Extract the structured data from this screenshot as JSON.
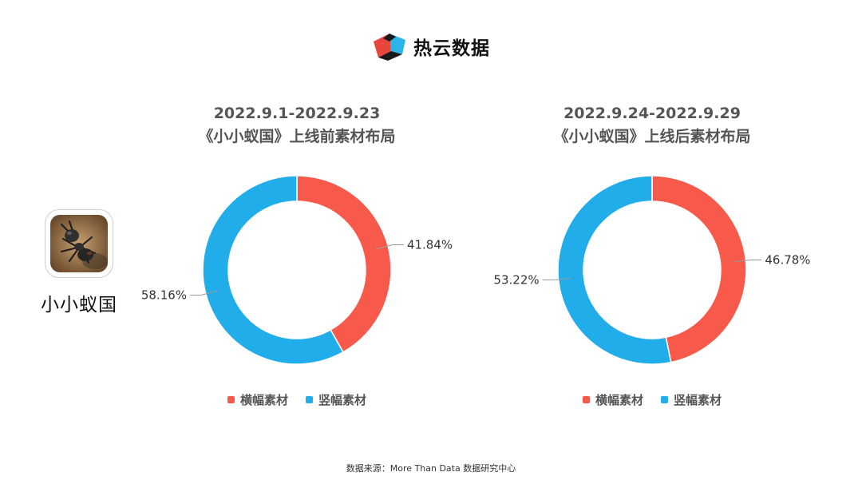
{
  "brand": {
    "name": "热云数据",
    "logo_icon": "reyun-logo-icon"
  },
  "game": {
    "name": "小小蚁国",
    "icon": "ant-game-icon"
  },
  "colors": {
    "horizontal": "#f75a4a",
    "vertical": "#21adea"
  },
  "chart_data": [
    {
      "type": "pie",
      "title": [
        "2022.9.1-2022.9.23",
        "《小小蚁国》上线前素材布局"
      ],
      "categories": [
        "横幅素材",
        "竖幅素材"
      ],
      "values": [
        41.84,
        58.16
      ],
      "labels": [
        "41.84%",
        "58.16%"
      ],
      "colors": [
        "#f75a4a",
        "#21adea"
      ],
      "legend": "bottom"
    },
    {
      "type": "pie",
      "title": [
        "2022.9.24-2022.9.29",
        "《小小蚁国》上线后素材布局"
      ],
      "categories": [
        "横幅素材",
        "竖幅素材"
      ],
      "values": [
        46.78,
        53.22
      ],
      "labels": [
        "46.78%",
        "53.22%"
      ],
      "colors": [
        "#f75a4a",
        "#21adea"
      ],
      "legend": "bottom"
    }
  ],
  "footer": {
    "source": "数据来源：More Than Data 数据研究中心"
  }
}
